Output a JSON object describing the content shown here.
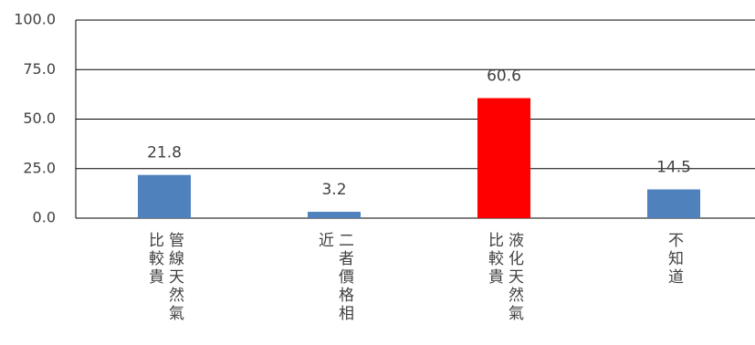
{
  "chart_data": {
    "type": "bar",
    "categories": [
      "管線天然氣比較貴",
      "二者價格相近",
      "液化天然氣比較貴",
      "不知道"
    ],
    "values": [
      21.8,
      3.2,
      60.6,
      14.5
    ],
    "colors": [
      "#4f81bd",
      "#4f81bd",
      "#ff0000",
      "#4f81bd"
    ],
    "ylim": [
      0,
      100
    ],
    "yticks": [
      {
        "value": 0,
        "label": "0.0"
      },
      {
        "value": 25,
        "label": "25.0"
      },
      {
        "value": 50,
        "label": "50.0"
      },
      {
        "value": 75,
        "label": "75.0"
      },
      {
        "value": 100,
        "label": "100.0"
      }
    ],
    "grid": true
  }
}
